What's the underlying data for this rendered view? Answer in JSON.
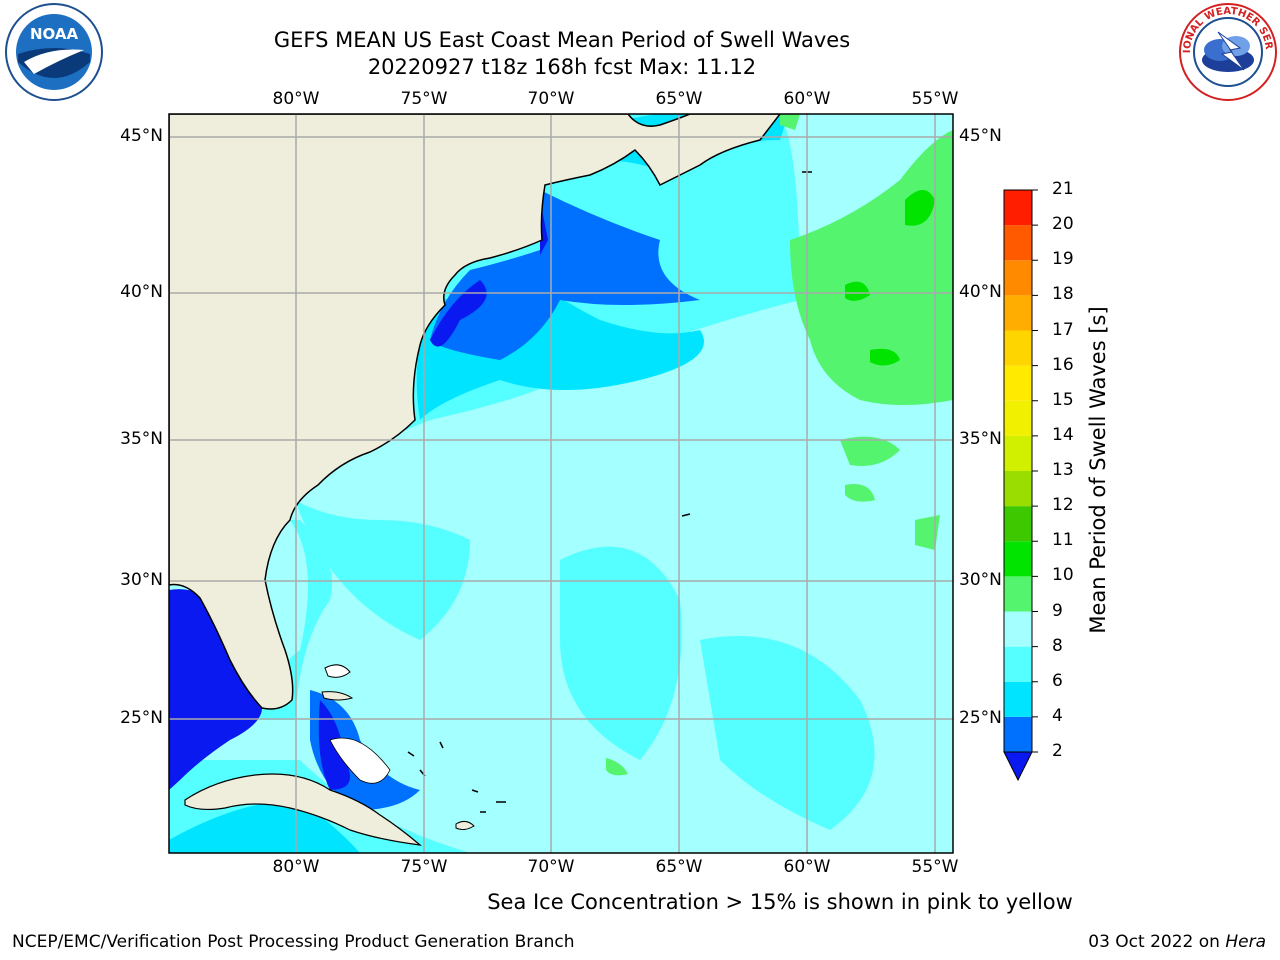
{
  "header": {
    "title_line1": "GEFS MEAN US East Coast Mean Period of Swell Waves",
    "title_line2": "20220927 t18z 168h fcst   Max: 11.12"
  },
  "logos": {
    "left": "noaa-logo",
    "right": "national-weather-service-logo",
    "left_text": "NOAA",
    "right_text": "NATIONAL WEATHER SERVICE"
  },
  "map": {
    "projection": "Mercator",
    "lon_range": [
      -85,
      -54
    ],
    "lat_range": [
      20.5,
      45.8
    ],
    "lon_ticks": [
      "80°W",
      "75°W",
      "70°W",
      "65°W",
      "60°W",
      "55°W"
    ],
    "lat_ticks": [
      "45°N",
      "40°N",
      "35°N",
      "30°N",
      "25°N"
    ],
    "land_color": "#efeedc",
    "grid_color": "#aaaaaa"
  },
  "colorbar": {
    "label": "Mean Period of Swell Waves [s]",
    "levels": [
      "2",
      "4",
      "6",
      "8",
      "9",
      "10",
      "11",
      "12",
      "13",
      "14",
      "15",
      "16",
      "17",
      "18",
      "19",
      "20",
      "21"
    ],
    "colors": [
      "#0070ff",
      "#00e4ff",
      "#55ffff",
      "#a4ffff",
      "#54f46e",
      "#00e400",
      "#3dc800",
      "#9add00",
      "#d0f000",
      "#f0f000",
      "#ffea00",
      "#ffd500",
      "#ffad00",
      "#ff8a00",
      "#ff5a00",
      "#ff1e00"
    ],
    "under_color": "#0a19f0"
  },
  "footer": {
    "sea_ice_note": "Sea Ice Concentration > 15% is shown in pink to yellow",
    "credit": "NCEP/EMC/Verification Post Processing Product Generation Branch",
    "date": "03 Oct 2022 on",
    "host": "Hera"
  }
}
